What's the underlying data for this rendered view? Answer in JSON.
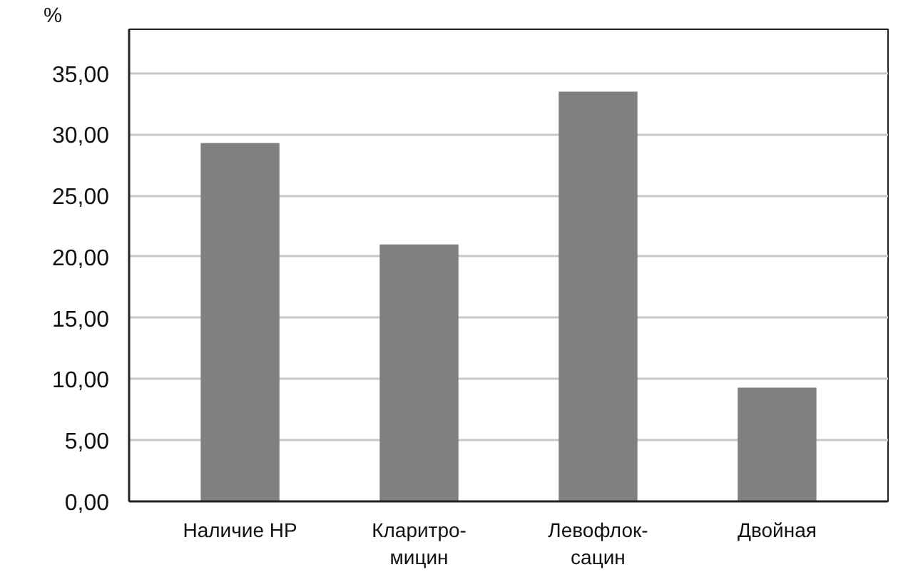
{
  "chart_data": {
    "type": "bar",
    "ylabel": "%",
    "categories": [
      "Наличие HP",
      "Кларитро-\nмицин",
      "Левофлок-\nсацин",
      "Двойная"
    ],
    "values": [
      29.3,
      21.0,
      33.5,
      9.3
    ],
    "color": "#808083",
    "ylim": [
      0,
      38.6
    ],
    "yticks": [
      {
        "value": 0,
        "label": "0,00"
      },
      {
        "value": 5,
        "label": "5,00"
      },
      {
        "value": 10,
        "label": "10,00"
      },
      {
        "value": 15,
        "label": "15,00"
      },
      {
        "value": 20,
        "label": "20,00"
      },
      {
        "value": 25,
        "label": "25,00"
      },
      {
        "value": 30,
        "label": "30,00"
      },
      {
        "value": 35,
        "label": "35,00"
      }
    ],
    "grid": "y"
  }
}
